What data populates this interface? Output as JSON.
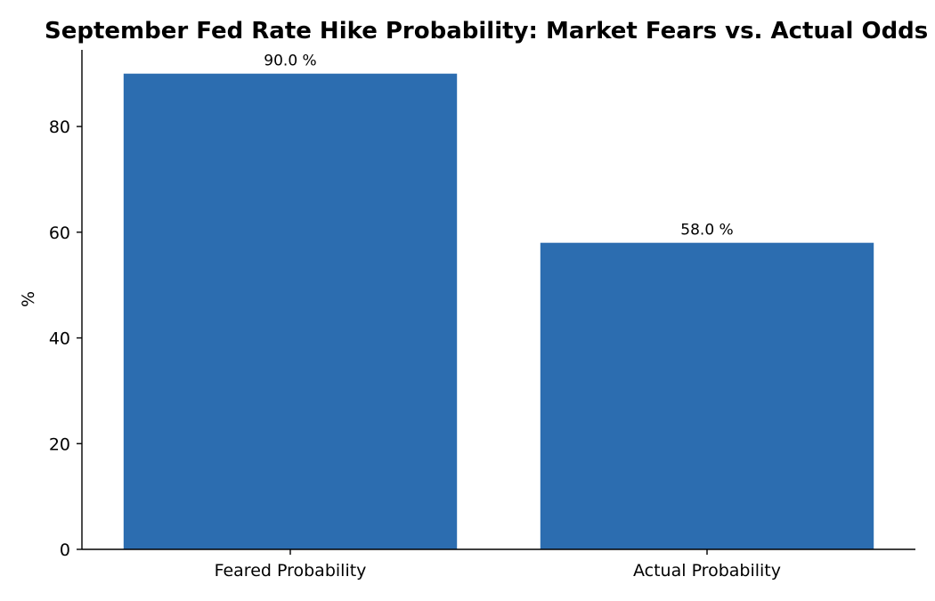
{
  "chart_data": {
    "type": "bar",
    "title": "September Fed Rate Hike Probability: Market Fears vs. Actual Odds",
    "xlabel": "",
    "ylabel": "%",
    "categories": [
      "Feared Probability",
      "Actual Probability"
    ],
    "values": [
      90.0,
      58.0
    ],
    "data_labels": [
      "90.0 %",
      "58.0 %"
    ],
    "ylim": [
      0,
      94.5
    ],
    "yticks": [
      0,
      20,
      40,
      60,
      80
    ],
    "bar_color": "#2c6db0",
    "grid": false,
    "legend": "none"
  }
}
